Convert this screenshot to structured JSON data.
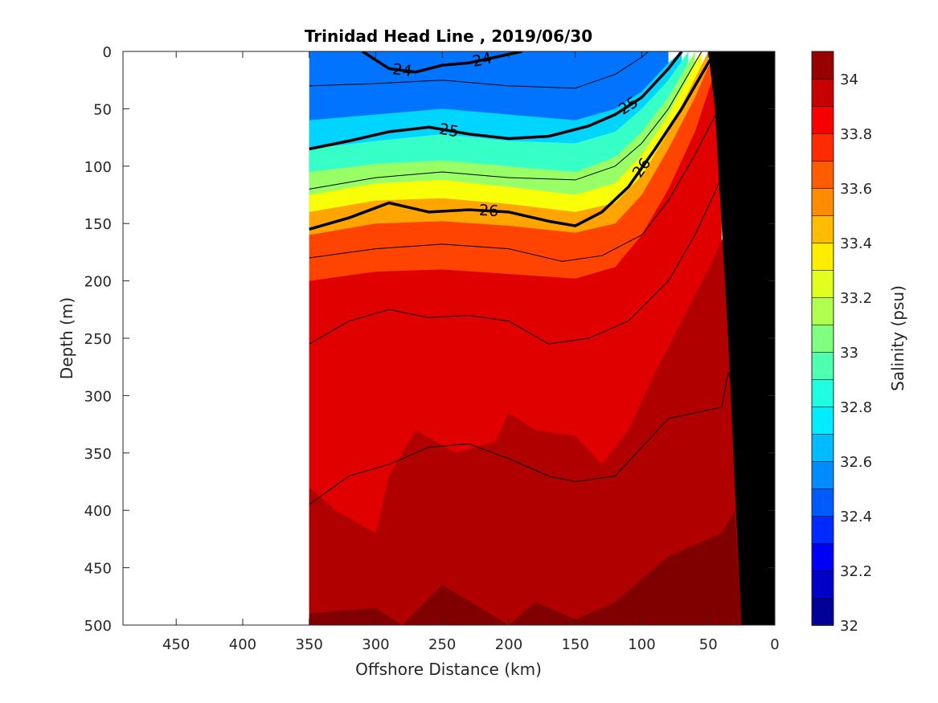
{
  "chart_data": {
    "type": "heatmap",
    "title": "Trinidad Head Line , 2019/06/30",
    "xlabel": "Offshore Distance (km)",
    "ylabel": "Depth (m)",
    "xlim": [
      490,
      0
    ],
    "ylim": [
      0,
      500
    ],
    "x_reversed": true,
    "y_reversed": true,
    "xticks": [
      450,
      400,
      350,
      300,
      250,
      200,
      150,
      100,
      50,
      0
    ],
    "yticks": [
      0,
      50,
      100,
      150,
      200,
      250,
      300,
      350,
      400,
      450,
      500
    ],
    "colorbar": {
      "label": "Salinity (psu)",
      "range": [
        32,
        34.1
      ],
      "step": 0.1,
      "ticks": [
        32,
        32.2,
        32.4,
        32.6,
        32.8,
        33,
        33.2,
        33.4,
        33.6,
        33.8,
        34
      ],
      "tick_labels": [
        "32",
        "32.2",
        "32.4",
        "32.6",
        "32.8",
        "33",
        "33.2",
        "33.4",
        "33.6",
        "33.8",
        "34"
      ]
    },
    "data_extent_km": [
      350,
      0
    ],
    "salinity_layers": [
      {
        "salinity": 32.5,
        "depth_by_distance": [
          [
            350,
            0
          ],
          [
            300,
            0
          ],
          [
            250,
            0
          ],
          [
            200,
            0
          ],
          [
            150,
            0
          ],
          [
            120,
            0
          ],
          [
            100,
            0
          ],
          [
            80,
            0
          ]
        ]
      },
      {
        "salinity": 32.7,
        "depth_by_distance": [
          [
            350,
            60
          ],
          [
            300,
            55
          ],
          [
            250,
            50
          ],
          [
            200,
            55
          ],
          [
            150,
            60
          ],
          [
            120,
            50
          ],
          [
            100,
            35
          ],
          [
            80,
            10
          ],
          [
            70,
            0
          ]
        ]
      },
      {
        "salinity": 32.9,
        "depth_by_distance": [
          [
            350,
            85
          ],
          [
            300,
            78
          ],
          [
            250,
            72
          ],
          [
            200,
            78
          ],
          [
            150,
            80
          ],
          [
            120,
            70
          ],
          [
            100,
            50
          ],
          [
            80,
            25
          ],
          [
            65,
            0
          ]
        ]
      },
      {
        "salinity": 33.1,
        "depth_by_distance": [
          [
            350,
            105
          ],
          [
            300,
            98
          ],
          [
            250,
            95
          ],
          [
            200,
            100
          ],
          [
            150,
            105
          ],
          [
            120,
            92
          ],
          [
            100,
            70
          ],
          [
            80,
            40
          ],
          [
            60,
            0
          ]
        ]
      },
      {
        "salinity": 33.3,
        "depth_by_distance": [
          [
            350,
            125
          ],
          [
            300,
            115
          ],
          [
            250,
            112
          ],
          [
            200,
            118
          ],
          [
            150,
            125
          ],
          [
            120,
            115
          ],
          [
            100,
            90
          ],
          [
            80,
            55
          ],
          [
            55,
            0
          ]
        ]
      },
      {
        "salinity": 33.5,
        "depth_by_distance": [
          [
            350,
            140
          ],
          [
            300,
            130
          ],
          [
            250,
            128
          ],
          [
            200,
            133
          ],
          [
            150,
            140
          ],
          [
            120,
            132
          ],
          [
            100,
            108
          ],
          [
            80,
            70
          ],
          [
            50,
            0
          ]
        ]
      },
      {
        "salinity": 33.7,
        "depth_by_distance": [
          [
            350,
            160
          ],
          [
            300,
            150
          ],
          [
            250,
            148
          ],
          [
            200,
            152
          ],
          [
            150,
            158
          ],
          [
            120,
            150
          ],
          [
            100,
            125
          ],
          [
            80,
            85
          ],
          [
            60,
            40
          ],
          [
            45,
            0
          ]
        ]
      },
      {
        "salinity": 33.9,
        "depth_by_distance": [
          [
            350,
            200
          ],
          [
            300,
            192
          ],
          [
            250,
            190
          ],
          [
            200,
            194
          ],
          [
            150,
            198
          ],
          [
            120,
            188
          ],
          [
            100,
            160
          ],
          [
            80,
            120
          ],
          [
            60,
            70
          ],
          [
            40,
            0
          ]
        ]
      },
      {
        "salinity": 34.0,
        "depth_by_distance": [
          [
            350,
            380
          ],
          [
            330,
            400
          ],
          [
            300,
            420
          ],
          [
            290,
            370
          ],
          [
            270,
            330
          ],
          [
            240,
            350
          ],
          [
            210,
            340
          ],
          [
            200,
            315
          ],
          [
            180,
            330
          ],
          [
            150,
            335
          ],
          [
            130,
            360
          ],
          [
            110,
            330
          ],
          [
            90,
            280
          ],
          [
            70,
            235
          ],
          [
            50,
            190
          ],
          [
            30,
            140
          ],
          [
            20,
            90
          ],
          [
            10,
            40
          ],
          [
            0,
            0
          ]
        ]
      },
      {
        "salinity": 34.1,
        "depth_by_distance": [
          [
            350,
            490
          ],
          [
            300,
            485
          ],
          [
            280,
            500
          ],
          [
            250,
            465
          ],
          [
            200,
            500
          ],
          [
            180,
            480
          ],
          [
            150,
            495
          ],
          [
            120,
            480
          ],
          [
            100,
            460
          ],
          [
            80,
            440
          ],
          [
            60,
            430
          ],
          [
            40,
            420
          ],
          [
            30,
            400
          ],
          [
            25,
            500
          ]
        ]
      }
    ],
    "density_contours": [
      {
        "value": 24,
        "labeled": true,
        "bold": true,
        "label_text": "24",
        "depth_by_distance": [
          [
            310,
            0
          ],
          [
            290,
            15
          ],
          [
            270,
            18
          ],
          [
            250,
            12
          ],
          [
            230,
            10
          ],
          [
            210,
            5
          ],
          [
            190,
            0
          ]
        ]
      },
      {
        "value": 25,
        "labeled": true,
        "bold": true,
        "label_text": "25",
        "depth_by_distance": [
          [
            350,
            85
          ],
          [
            320,
            78
          ],
          [
            290,
            70
          ],
          [
            260,
            66
          ],
          [
            230,
            72
          ],
          [
            200,
            76
          ],
          [
            170,
            74
          ],
          [
            140,
            65
          ],
          [
            120,
            55
          ],
          [
            100,
            40
          ],
          [
            80,
            15
          ],
          [
            70,
            0
          ]
        ]
      },
      {
        "value": 26,
        "labeled": true,
        "bold": true,
        "label_text": "26",
        "depth_by_distance": [
          [
            350,
            155
          ],
          [
            320,
            145
          ],
          [
            290,
            132
          ],
          [
            260,
            140
          ],
          [
            230,
            138
          ],
          [
            200,
            140
          ],
          [
            170,
            148
          ],
          [
            150,
            152
          ],
          [
            130,
            140
          ],
          [
            110,
            118
          ],
          [
            90,
            85
          ],
          [
            70,
            50
          ],
          [
            55,
            20
          ],
          [
            45,
            0
          ]
        ]
      },
      {
        "value": 24.5,
        "labeled": false,
        "bold": false,
        "depth_by_distance": [
          [
            350,
            30
          ],
          [
            300,
            28
          ],
          [
            250,
            25
          ],
          [
            200,
            30
          ],
          [
            150,
            32
          ],
          [
            120,
            20
          ],
          [
            100,
            5
          ],
          [
            95,
            0
          ]
        ]
      },
      {
        "value": 25.5,
        "labeled": false,
        "bold": false,
        "depth_by_distance": [
          [
            350,
            120
          ],
          [
            300,
            110
          ],
          [
            250,
            105
          ],
          [
            200,
            110
          ],
          [
            150,
            112
          ],
          [
            120,
            100
          ],
          [
            100,
            80
          ],
          [
            80,
            50
          ],
          [
            65,
            20
          ],
          [
            55,
            0
          ]
        ]
      },
      {
        "value": 26.5,
        "labeled": false,
        "bold": false,
        "depth_by_distance": [
          [
            350,
            180
          ],
          [
            300,
            172
          ],
          [
            250,
            168
          ],
          [
            200,
            172
          ],
          [
            160,
            183
          ],
          [
            130,
            178
          ],
          [
            100,
            160
          ],
          [
            80,
            130
          ],
          [
            60,
            90
          ],
          [
            40,
            45
          ],
          [
            30,
            0
          ]
        ]
      },
      {
        "value": 26.7,
        "labeled": false,
        "bold": false,
        "depth_by_distance": [
          [
            350,
            255
          ],
          [
            320,
            235
          ],
          [
            290,
            225
          ],
          [
            260,
            232
          ],
          [
            230,
            230
          ],
          [
            200,
            235
          ],
          [
            170,
            255
          ],
          [
            140,
            250
          ],
          [
            110,
            235
          ],
          [
            80,
            200
          ],
          [
            60,
            160
          ],
          [
            40,
            110
          ],
          [
            25,
            70
          ],
          [
            15,
            0
          ]
        ]
      },
      {
        "value": 26.9,
        "labeled": false,
        "bold": false,
        "depth_by_distance": [
          [
            350,
            395
          ],
          [
            320,
            370
          ],
          [
            290,
            360
          ],
          [
            260,
            345
          ],
          [
            230,
            342
          ],
          [
            200,
            355
          ],
          [
            170,
            370
          ],
          [
            150,
            375
          ],
          [
            120,
            370
          ],
          [
            100,
            345
          ],
          [
            80,
            320
          ],
          [
            60,
            315
          ],
          [
            40,
            310
          ],
          [
            35,
            280
          ],
          [
            28,
            300
          ],
          [
            25,
            350
          ]
        ]
      }
    ],
    "bathymetry": {
      "color": "#000000",
      "shelf_points": [
        [
          0,
          0
        ],
        [
          0,
          500
        ],
        [
          25,
          500
        ],
        [
          30,
          380
        ],
        [
          35,
          250
        ],
        [
          40,
          150
        ],
        [
          45,
          50
        ],
        [
          50,
          0
        ]
      ]
    }
  }
}
